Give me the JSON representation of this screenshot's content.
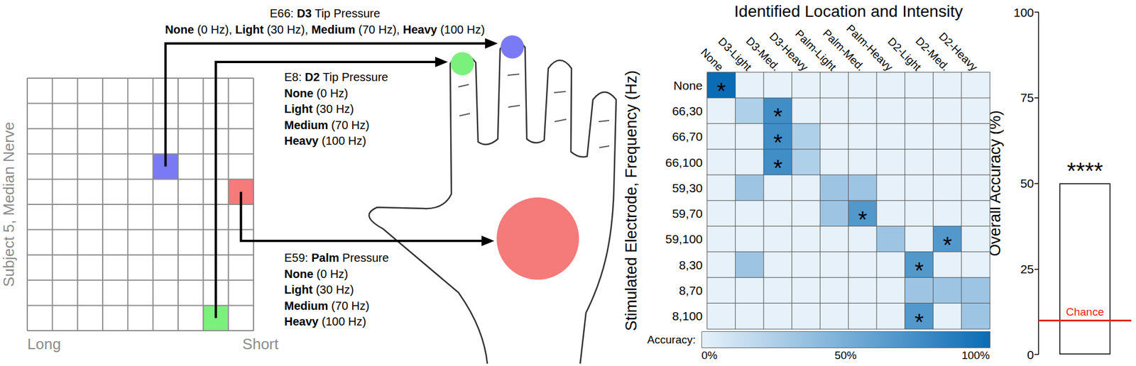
{
  "diagram": {
    "grid": {
      "rows": 10,
      "columns": 9,
      "label": "Subject 5, Median Nerve",
      "left_label": "Long",
      "right_label": "Short"
    },
    "electrodes": [
      {
        "name": "E66:",
        "site": "D3",
        "description": "Tip Pressure",
        "color": "#7a7af5",
        "row": 3,
        "column": 5,
        "separator": ", ",
        "levels": [
          {
            "name": "None",
            "detail": "(0 Hz)"
          },
          {
            "name": "Light",
            "detail": "(30 Hz)"
          },
          {
            "name": "Medium",
            "detail": "(70 Hz)"
          },
          {
            "name": "Heavy",
            "detail": "(100 Hz)"
          }
        ]
      },
      {
        "name": "E8:",
        "site": "D2",
        "description": "Tip Pressure",
        "color": "#7cf07c",
        "row": 9,
        "column": 7,
        "levels": [
          {
            "name": "None",
            "detail": "(0 Hz)"
          },
          {
            "name": "Light",
            "detail": "(30 Hz)"
          },
          {
            "name": "Medium",
            "detail": "(70 Hz)"
          },
          {
            "name": "Heavy",
            "detail": "(100 Hz)"
          }
        ]
      },
      {
        "name": "E59:",
        "site": "Palm",
        "description": "Pressure",
        "color": "#f57a7a",
        "row": 4,
        "column": 8,
        "levels": [
          {
            "name": "None",
            "detail": "(0 Hz)"
          },
          {
            "name": "Light",
            "detail": "(30 Hz)"
          },
          {
            "name": "Medium",
            "detail": "(70 Hz)"
          },
          {
            "name": "Heavy",
            "detail": "(100 Hz)"
          }
        ]
      }
    ]
  },
  "chart_data": [
    {
      "type": "heatmap",
      "title": "Identified Location and Intensity",
      "y_label": "Stimulated Electrode, Frequency (Hz)",
      "x_categories": [
        "None",
        "D3-Light",
        "D3-Med.",
        "D3-Heavy",
        "Palm-Light",
        "Palm-Med.",
        "Palm-Heavy",
        "D2-Light",
        "D2-Med.",
        "D2-Heavy"
      ],
      "y_categories": [
        "None",
        "66,30",
        "66,70",
        "66,100",
        "59,30",
        "59,70",
        "59,100",
        "8,30",
        "8,70",
        "8,100"
      ],
      "values": [
        [
          100,
          0,
          0,
          0,
          0,
          0,
          0,
          0,
          0,
          0
        ],
        [
          0,
          25,
          75,
          0,
          0,
          0,
          0,
          0,
          0,
          0
        ],
        [
          0,
          0,
          75,
          25,
          0,
          0,
          0,
          0,
          0,
          0
        ],
        [
          0,
          0,
          75,
          25,
          0,
          0,
          0,
          0,
          0,
          0
        ],
        [
          0,
          33,
          0,
          0,
          33,
          33,
          0,
          0,
          0,
          0
        ],
        [
          0,
          0,
          0,
          0,
          33,
          67,
          0,
          0,
          0,
          0
        ],
        [
          0,
          0,
          0,
          0,
          0,
          0,
          33,
          0,
          67,
          0
        ],
        [
          0,
          33,
          0,
          0,
          0,
          0,
          0,
          67,
          0,
          0
        ],
        [
          0,
          0,
          0,
          0,
          0,
          0,
          0,
          33,
          33,
          33
        ],
        [
          0,
          0,
          0,
          0,
          0,
          0,
          0,
          67,
          0,
          33
        ]
      ],
      "significant": [
        [
          0,
          0
        ],
        [
          1,
          2
        ],
        [
          2,
          2
        ],
        [
          3,
          2
        ],
        [
          5,
          5
        ],
        [
          6,
          8
        ],
        [
          7,
          7
        ],
        [
          9,
          7
        ]
      ],
      "significance_label": "*",
      "colorbar": {
        "label": "Accuracy:",
        "range": [
          0,
          100
        ],
        "ticks": [
          {
            "value": 0,
            "label": "0%"
          },
          {
            "value": 50,
            "label": "50%"
          },
          {
            "value": 100,
            "label": "100%"
          }
        ]
      }
    },
    {
      "type": "bar",
      "y_label": "Overall Accuracy (%)",
      "categories": [
        null
      ],
      "values": [
        50
      ],
      "color": "#ffffff",
      "annotation": "****",
      "ylim": [
        0,
        100
      ],
      "yticks": [
        0,
        25,
        50,
        75,
        100
      ],
      "grid": false,
      "reference_line": {
        "value": 10,
        "label": "Chance",
        "color": "#e8221e"
      }
    }
  ]
}
